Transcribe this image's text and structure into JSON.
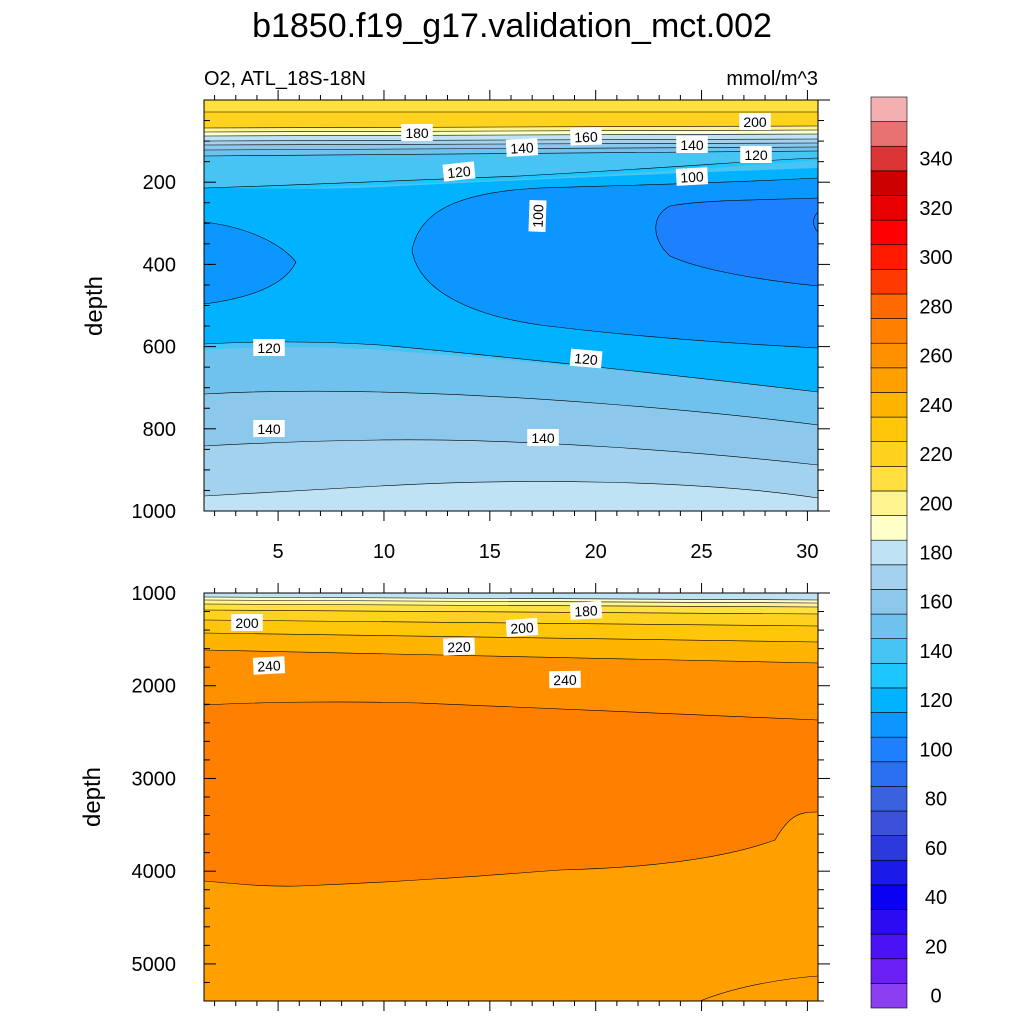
{
  "chart_data": {
    "type": "contour",
    "title": "b1850.f19_g17.validation_mct.002",
    "subtitle_left": "O2, ATL_18S-18N",
    "subtitle_right": "mmol/m^3",
    "panels": [
      {
        "ylabel": "depth",
        "xlim": [
          1.5,
          30.5
        ],
        "ylim": [
          1000,
          0
        ],
        "x_ticks": [
          "5",
          "10",
          "15",
          "20",
          "25",
          "30"
        ],
        "y_ticks": [
          "200",
          "400",
          "600",
          "800",
          "1000"
        ],
        "contour_labels": [
          "180",
          "160",
          "140",
          "140",
          "200",
          "120",
          "120",
          "100",
          "100",
          "120",
          "120",
          "140",
          "140"
        ]
      },
      {
        "ylabel": "depth",
        "xlim": [
          1.5,
          30.5
        ],
        "ylim": [
          5400,
          1000
        ],
        "x_ticks": [],
        "y_ticks": [
          "1000",
          "2000",
          "3000",
          "4000",
          "5000"
        ],
        "contour_labels": [
          "200",
          "180",
          "200",
          "220",
          "240",
          "240"
        ]
      }
    ],
    "colorbar": {
      "levels": [
        0,
        10,
        20,
        30,
        40,
        50,
        60,
        70,
        80,
        90,
        100,
        110,
        120,
        130,
        140,
        150,
        160,
        170,
        180,
        190,
        200,
        210,
        220,
        230,
        240,
        250,
        260,
        270,
        280,
        290,
        300,
        310,
        320,
        330,
        340,
        350
      ],
      "tick_labels": [
        "0",
        "20",
        "40",
        "60",
        "80",
        "100",
        "120",
        "140",
        "160",
        "180",
        "200",
        "220",
        "240",
        "260",
        "280",
        "300",
        "320",
        "340"
      ],
      "colors": [
        "#8b3ff0",
        "#6a20f5",
        "#4b12f5",
        "#2c0bf2",
        "#0a00f2",
        "#1b1be8",
        "#2c3ad9",
        "#3a52d9",
        "#3a62de",
        "#2a6ff0",
        "#1c80ff",
        "#0c96ff",
        "#00b2ff",
        "#1ec6ff",
        "#48c4f4",
        "#70c2ee",
        "#8cc8ec",
        "#a3d2ef",
        "#bfe3f4",
        "#ffffc8",
        "#fff590",
        "#ffe040",
        "#ffd21e",
        "#ffc60a",
        "#ffb400",
        "#ffa000",
        "#ff9000",
        "#ff8000",
        "#ff6a00",
        "#ff3a00",
        "#ff1a00",
        "#ff0000",
        "#e80000",
        "#cc0000",
        "#dc3535",
        "#e87272",
        "#f4b0b0"
      ]
    }
  }
}
